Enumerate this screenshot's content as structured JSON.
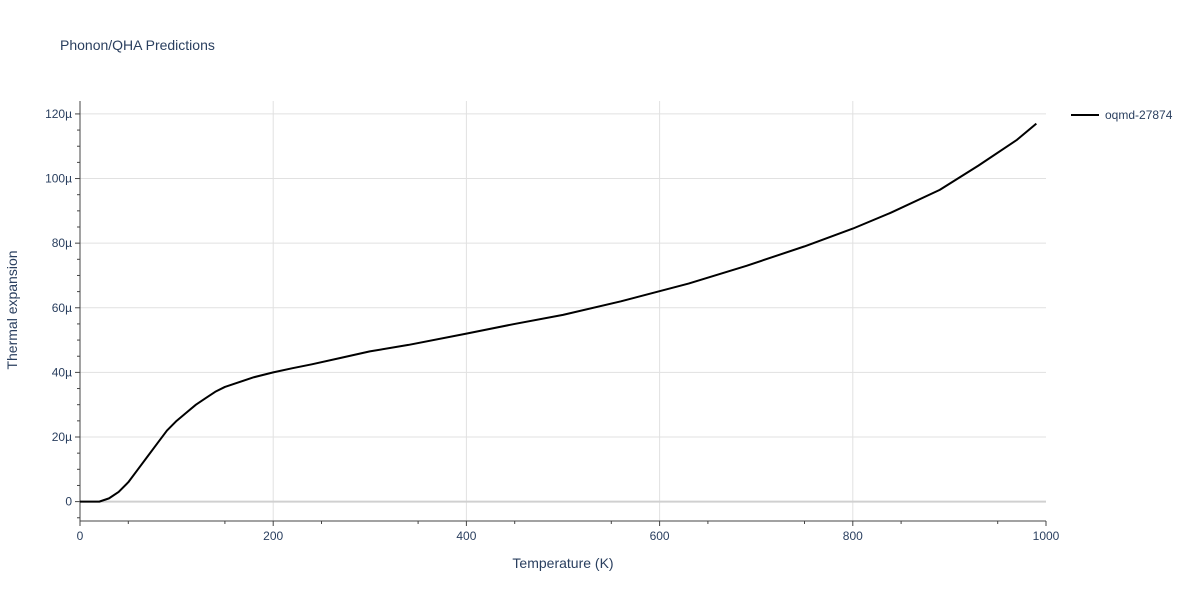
{
  "chart_data": {
    "type": "line",
    "title": "Phonon/QHA Predictions",
    "xlabel": "Temperature (K)",
    "ylabel": "Thermal expansion",
    "xlim": [
      0,
      1000
    ],
    "ylim": [
      -6,
      124
    ],
    "x_ticks": [
      {
        "value": 0,
        "label": "0"
      },
      {
        "value": 200,
        "label": "200"
      },
      {
        "value": 400,
        "label": "400"
      },
      {
        "value": 600,
        "label": "600"
      },
      {
        "value": 800,
        "label": "800"
      },
      {
        "value": 1000,
        "label": "1000"
      }
    ],
    "y_ticks": [
      {
        "value": 0,
        "label": "0"
      },
      {
        "value": 20,
        "label": "20µ"
      },
      {
        "value": 40,
        "label": "40µ"
      },
      {
        "value": 60,
        "label": "60µ"
      },
      {
        "value": 80,
        "label": "80µ"
      },
      {
        "value": 100,
        "label": "100µ"
      },
      {
        "value": 120,
        "label": "120µ"
      }
    ],
    "grid": true,
    "legend_position": "top-right",
    "series": [
      {
        "name": "oqmd-27874",
        "color": "#000000",
        "x": [
          0,
          10,
          20,
          30,
          40,
          50,
          60,
          70,
          80,
          90,
          100,
          110,
          120,
          130,
          140,
          150,
          160,
          180,
          200,
          220,
          240,
          270,
          300,
          340,
          400,
          450,
          500,
          560,
          630,
          690,
          750,
          800,
          840,
          890,
          930,
          970,
          990
        ],
        "y": [
          0,
          0,
          0,
          1,
          3,
          6,
          10,
          14,
          18,
          22,
          25,
          27.5,
          30,
          32,
          34,
          35.5,
          36.5,
          38.5,
          40,
          41.3,
          42.5,
          44.5,
          46.5,
          48.5,
          52,
          55,
          57.8,
          62,
          67.5,
          73,
          79,
          84.5,
          89.5,
          96.5,
          104,
          112,
          117
        ]
      }
    ]
  }
}
